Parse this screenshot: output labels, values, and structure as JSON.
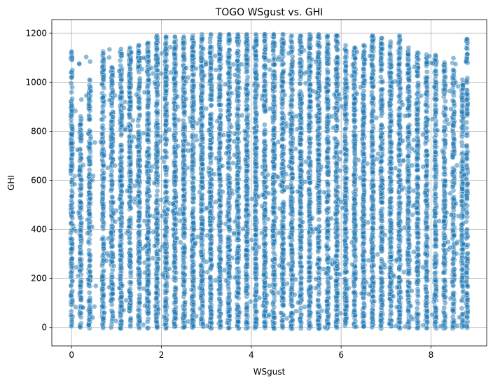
{
  "chart_data": {
    "type": "scatter",
    "title": "TOGO WSgust vs. GHI",
    "xlabel": "WSgust",
    "ylabel": "GHI",
    "xlim": [
      -0.44,
      9.24
    ],
    "ylim": [
      -75,
      1255
    ],
    "x_ticks": [
      0,
      2,
      4,
      6,
      8
    ],
    "y_ticks": [
      0,
      200,
      400,
      600,
      800,
      1000,
      1200
    ],
    "grid": true,
    "legend": "none",
    "marker_color": "#1f77b4",
    "marker_edge_color": "#ffffff",
    "marker_alpha": 0.5,
    "x_levels": [
      0,
      0.2,
      0.4,
      0.7,
      0.9,
      1.1,
      1.3,
      1.5,
      1.7,
      1.9,
      2.1,
      2.3,
      2.5,
      2.7,
      2.9,
      3.1,
      3.3,
      3.5,
      3.7,
      3.9,
      4.1,
      4.3,
      4.5,
      4.7,
      4.9,
      5.1,
      5.3,
      5.5,
      5.7,
      5.9,
      6.1,
      6.3,
      6.5,
      6.7,
      6.9,
      7.1,
      7.3,
      7.5,
      7.7,
      7.9,
      8.1,
      8.3,
      8.5,
      8.7,
      8.8
    ],
    "column_max_ghi": [
      1125,
      860,
      1010,
      1125,
      1060,
      1135,
      1140,
      1150,
      1160,
      1190,
      1185,
      1185,
      1185,
      1190,
      1195,
      1195,
      1195,
      1195,
      1195,
      1195,
      1195,
      1195,
      1195,
      1195,
      1190,
      1190,
      1195,
      1195,
      1190,
      1190,
      1150,
      1140,
      1150,
      1190,
      1180,
      1165,
      1190,
      1140,
      1120,
      1100,
      1110,
      1080,
      1050,
      1010,
      1175
    ],
    "column_density": [
      0.5,
      0.3,
      0.45,
      0.6,
      0.65,
      0.7,
      0.75,
      0.8,
      0.85,
      0.9,
      0.92,
      0.95,
      0.95,
      0.95,
      0.95,
      0.95,
      0.95,
      0.95,
      0.95,
      0.95,
      0.95,
      0.95,
      0.95,
      0.95,
      0.95,
      0.95,
      0.95,
      0.95,
      0.95,
      0.95,
      0.9,
      0.88,
      0.85,
      0.85,
      0.8,
      0.8,
      0.75,
      0.7,
      0.7,
      0.65,
      0.6,
      0.55,
      0.5,
      0.45,
      0.35
    ]
  }
}
